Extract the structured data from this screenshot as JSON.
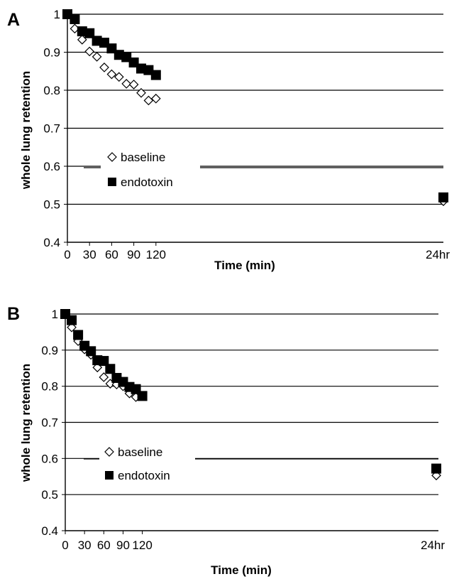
{
  "chart_data": [
    {
      "type": "scatter",
      "panel_label": "A",
      "xlabel": "Time (min)",
      "ylabel": "whole lung retention",
      "x_ticks": [
        "0",
        "30",
        "60",
        "90",
        "120",
        "24hr"
      ],
      "y_ticks": [
        "0.4",
        "0.5",
        "0.6",
        "0.7",
        "0.8",
        "0.9",
        "1"
      ],
      "ylim": [
        0.4,
        1.0
      ],
      "x_categories": [
        "0",
        "10",
        "20",
        "30",
        "40",
        "50",
        "60",
        "70",
        "80",
        "90",
        "100",
        "110",
        "120",
        "24hr"
      ],
      "grid": "horizontal",
      "legend_position": "middle-left",
      "series": [
        {
          "name": "baseline",
          "marker": "open-diamond",
          "color": "#ffffff",
          "values": [
            1.0,
            0.962,
            0.933,
            0.902,
            0.888,
            0.86,
            0.842,
            0.835,
            0.817,
            0.815,
            0.793,
            0.773,
            0.778,
            0.508
          ]
        },
        {
          "name": "endotoxin",
          "marker": "filled-square",
          "color": "#000000",
          "values": [
            1.0,
            0.987,
            0.955,
            0.95,
            0.93,
            0.925,
            0.91,
            0.893,
            0.887,
            0.873,
            0.857,
            0.853,
            0.84,
            0.518
          ]
        }
      ]
    },
    {
      "type": "scatter",
      "panel_label": "B",
      "xlabel": "Time (min)",
      "ylabel": "whole lung retention",
      "x_ticks": [
        "0",
        "30",
        "60",
        "90",
        "120",
        "24hr"
      ],
      "y_ticks": [
        "0.4",
        "0.5",
        "0.6",
        "0.7",
        "0.8",
        "0.9",
        "1"
      ],
      "ylim": [
        0.4,
        1.0
      ],
      "x_categories": [
        "0",
        "10",
        "20",
        "30",
        "40",
        "50",
        "60",
        "70",
        "80",
        "90",
        "100",
        "110",
        "120",
        "24hr"
      ],
      "grid": "horizontal",
      "legend_position": "middle-left",
      "series": [
        {
          "name": "baseline",
          "marker": "open-diamond",
          "color": "#ffffff",
          "values": [
            1.0,
            0.963,
            0.925,
            0.902,
            0.887,
            0.852,
            0.825,
            0.807,
            0.805,
            0.8,
            0.78,
            0.77,
            null,
            0.553
          ]
        },
        {
          "name": "endotoxin",
          "marker": "filled-square",
          "color": "#000000",
          "values": [
            1.0,
            0.983,
            0.942,
            0.912,
            0.897,
            0.872,
            0.87,
            0.848,
            0.823,
            0.812,
            0.798,
            0.792,
            0.773,
            0.572
          ]
        }
      ]
    }
  ]
}
